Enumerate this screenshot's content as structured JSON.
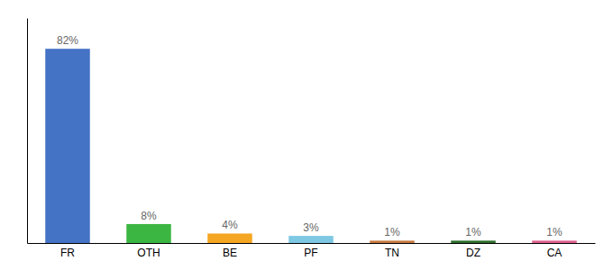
{
  "chart_data": {
    "type": "bar",
    "categories": [
      "FR",
      "OTH",
      "BE",
      "PF",
      "TN",
      "DZ",
      "CA"
    ],
    "values": [
      82,
      8,
      4,
      3,
      1,
      1,
      1
    ],
    "value_labels": [
      "82%",
      "8%",
      "4%",
      "3%",
      "1%",
      "1%",
      "1%"
    ],
    "colors": [
      "#4472c4",
      "#3cb642",
      "#f5a623",
      "#7ec8e3",
      "#c87941",
      "#2d6e2d",
      "#e05f8e"
    ],
    "ylim": [
      0,
      95
    ],
    "yticks": [],
    "grid": false,
    "data_labels": true,
    "tick_labels": "x"
  }
}
